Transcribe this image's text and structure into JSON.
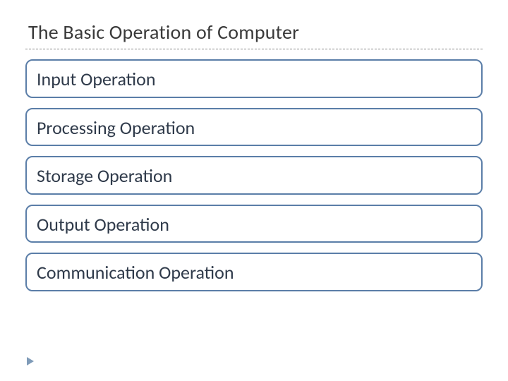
{
  "title": "The Basic Operation of Computer",
  "title_color": "#3a3a3a",
  "title_fontsize": 28,
  "divider_color": "#888888",
  "background_color": "#ffffff",
  "item_border_color": "#5b7ea8",
  "item_text_color": "#2f3a4a",
  "item_fontsize": 26,
  "item_border_radius": 10,
  "bullet_color": "#7f9bb8",
  "operations": [
    {
      "label": "Input Operation"
    },
    {
      "label": "Processing Operation"
    },
    {
      "label": "Storage Operation"
    },
    {
      "label": "Output Operation"
    },
    {
      "label": "Communication Operation"
    }
  ]
}
